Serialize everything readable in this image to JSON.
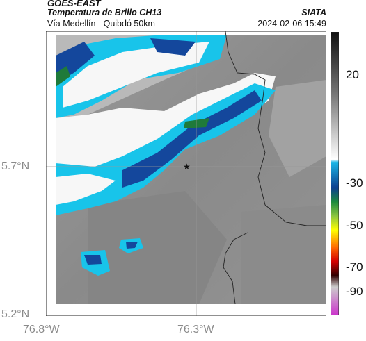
{
  "header": {
    "satellite": "GOES-EAST",
    "product": "Temperatura de Brillo CH13",
    "route": "Vía Medellín - Quibdó 50km",
    "brand": "SIATA",
    "timestamp": "2024-02-06 15:49"
  },
  "axes": {
    "lat_ticks": [
      "5.7°N",
      "5.2°N"
    ],
    "lon_ticks": [
      "76.8°W",
      "76.3°W"
    ]
  },
  "colorbar": {
    "labels": [
      "20",
      "-30",
      "-50",
      "-70",
      "-90"
    ],
    "colors": [
      "#101010",
      "#777777",
      "#ffffff",
      "#19b6e6",
      "#0c3f8f",
      "#1c8a3c",
      "#8cc63f",
      "#ffff00",
      "#ff6a00",
      "#d40000",
      "#300000",
      "#cccccc",
      "#cc33cc"
    ]
  },
  "marker": {
    "symbol": "★",
    "name": "reference-point"
  },
  "colors": {
    "cloud_white": "#f7f7f7",
    "cold_cyan": "#18c4ea",
    "deep_blue": "#14479c",
    "green_core": "#1f7a3a",
    "ground_gray": "#8e8e8e"
  }
}
